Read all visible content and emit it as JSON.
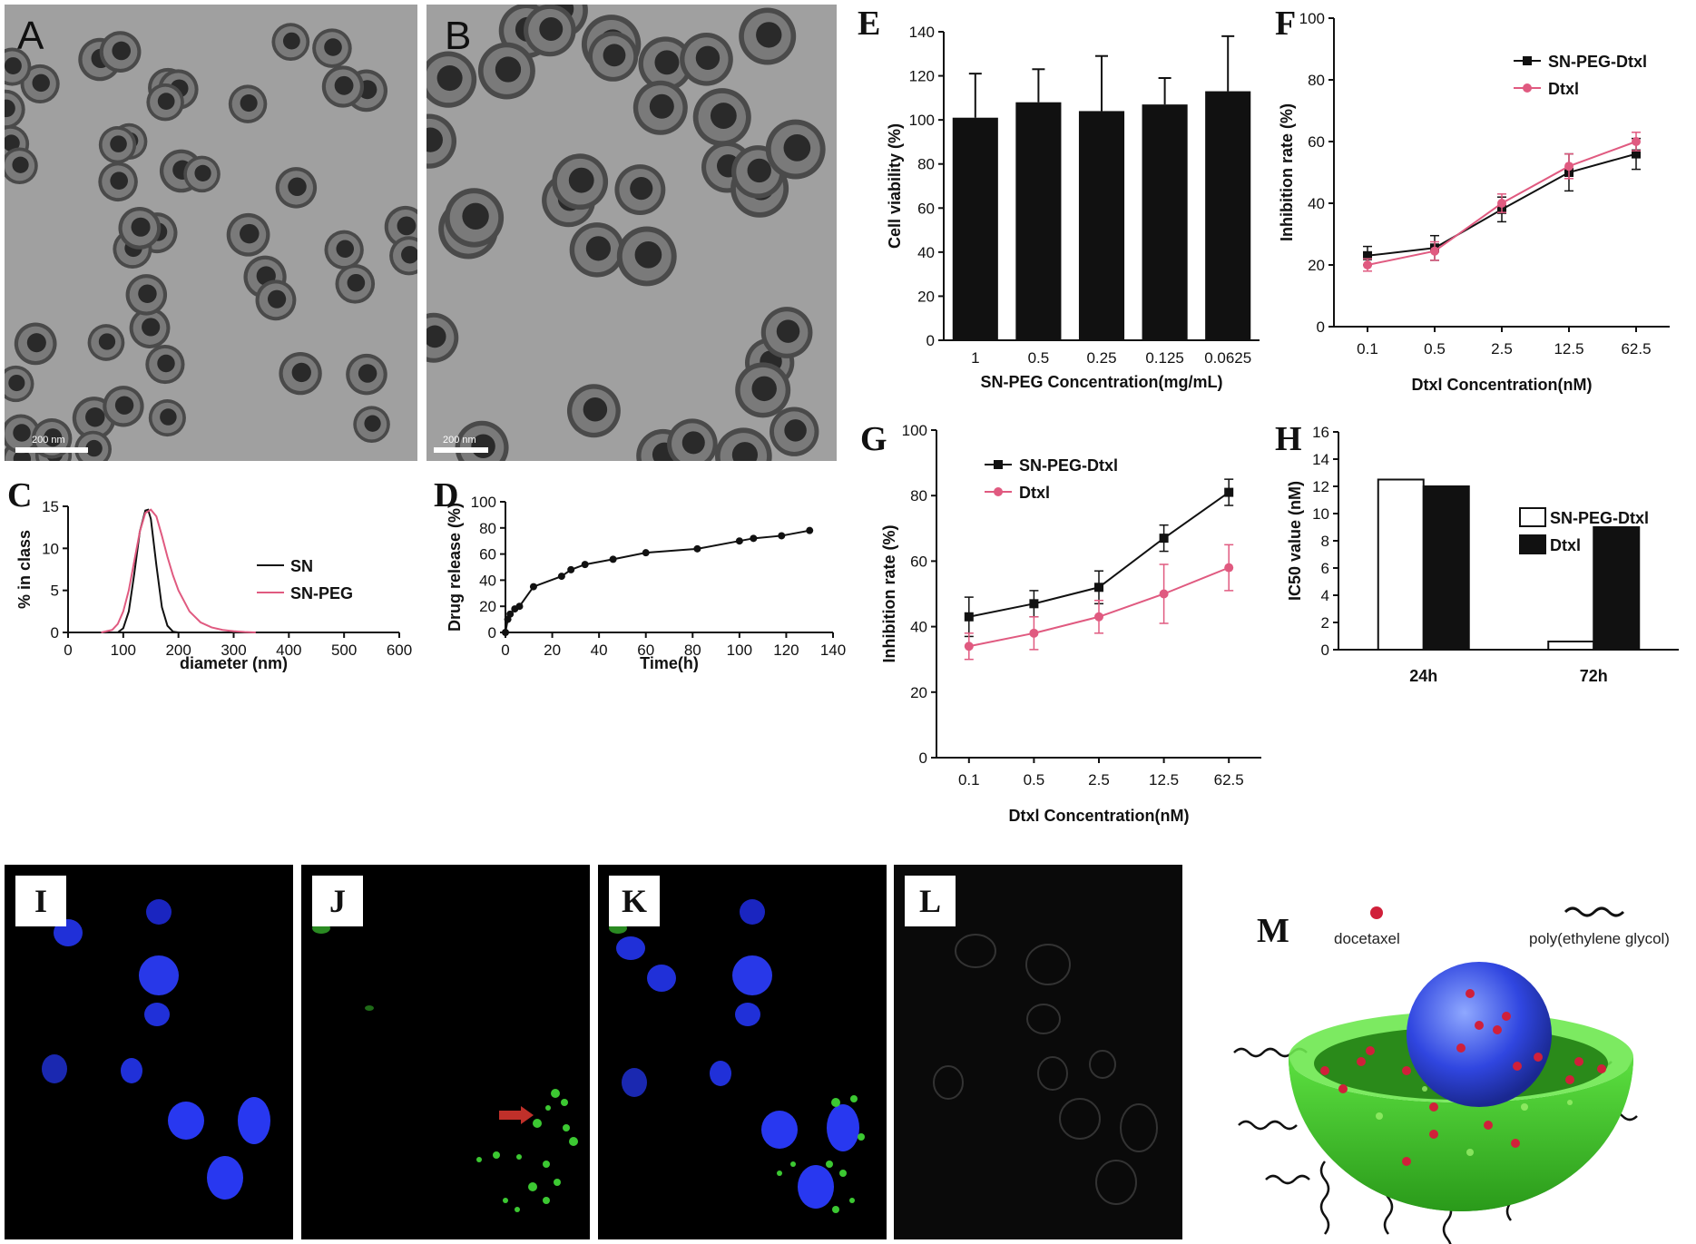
{
  "panels": {
    "A": {
      "label": "A",
      "scale": "200 nm"
    },
    "B": {
      "label": "B",
      "scale": "200 nm"
    },
    "I": {
      "label": "I"
    },
    "J": {
      "label": "J"
    },
    "K": {
      "label": "K"
    },
    "L": {
      "label": "L"
    },
    "M": {
      "label": "M",
      "legend_drug": "docetaxel",
      "legend_polymer": "poly(ethylene glycol)"
    }
  },
  "colors": {
    "black": "#111111",
    "pink": "#e05a80",
    "blue": "#2030e0",
    "green": "#3cc832"
  },
  "chart_data": [
    {
      "id": "C",
      "type": "line",
      "panel_label": "C",
      "xlabel": "diameter (nm)",
      "ylabel": "% in class",
      "xlim": [
        0,
        600
      ],
      "ylim": [
        0,
        15
      ],
      "xticks": [
        0,
        100,
        200,
        300,
        400,
        500,
        600
      ],
      "yticks": [
        0,
        5,
        10,
        15
      ],
      "legend_position": "right",
      "series": [
        {
          "name": "SN",
          "color": "#111111",
          "x": [
            90,
            100,
            110,
            120,
            130,
            140,
            145,
            150,
            160,
            170,
            180,
            190,
            200
          ],
          "y": [
            0,
            0.5,
            2.5,
            7,
            12,
            14.5,
            14.6,
            13.5,
            8,
            3,
            0.8,
            0.1,
            0
          ]
        },
        {
          "name": "SN-PEG",
          "color": "#e05a80",
          "x": [
            60,
            80,
            90,
            100,
            110,
            120,
            130,
            140,
            150,
            160,
            170,
            180,
            190,
            200,
            220,
            240,
            260,
            280,
            300,
            320,
            340
          ],
          "y": [
            0,
            0.3,
            1,
            2.5,
            5,
            8.5,
            12,
            14.2,
            14.6,
            13.8,
            11.5,
            9,
            6.8,
            5,
            2.5,
            1.2,
            0.6,
            0.3,
            0.15,
            0.05,
            0
          ]
        }
      ]
    },
    {
      "id": "D",
      "type": "line",
      "panel_label": "D",
      "xlabel": "Time(h)",
      "ylabel": "Drug release (%)",
      "xlim": [
        0,
        140
      ],
      "ylim": [
        0,
        100
      ],
      "xticks": [
        0,
        20,
        40,
        60,
        80,
        100,
        120,
        140
      ],
      "yticks": [
        0,
        20,
        40,
        60,
        80,
        100
      ],
      "tick_labels_x": [
        "0",
        "20",
        "40",
        "60",
        "80",
        "100",
        "120",
        "140"
      ],
      "series": [
        {
          "name": "",
          "color": "#111111",
          "x": [
            0,
            1,
            2,
            4,
            6,
            12,
            24,
            28,
            34,
            46,
            60,
            82,
            100,
            106,
            118,
            130
          ],
          "y": [
            0,
            10,
            14,
            18,
            20,
            35,
            43,
            48,
            52,
            56,
            61,
            64,
            70,
            72,
            74,
            78
          ]
        }
      ]
    },
    {
      "id": "E",
      "type": "bar",
      "panel_label": "E",
      "xlabel": "SN-PEG Concentration(mg/mL)",
      "ylabel": "Cell viability (%)",
      "ylim": [
        0,
        140
      ],
      "yticks": [
        0,
        20,
        40,
        60,
        80,
        100,
        120,
        140
      ],
      "categories": [
        "1",
        "0.5",
        "0.25",
        "0.125",
        "0.0625"
      ],
      "values": [
        101,
        108,
        104,
        107,
        113
      ],
      "errors": [
        20,
        15,
        25,
        12,
        25
      ]
    },
    {
      "id": "F",
      "type": "line",
      "panel_label": "F",
      "xlabel": "Dtxl Concentration(nM)",
      "ylabel": "Inhibition rate (%)",
      "ylim": [
        0,
        100
      ],
      "yticks": [
        0,
        20,
        40,
        60,
        80,
        100
      ],
      "categories": [
        "0.1",
        "0.5",
        "2.5",
        "12.5",
        "62.5"
      ],
      "legend_position": "top-right",
      "series": [
        {
          "name": "SN-PEG-Dtxl",
          "color": "#111111",
          "marker": "square",
          "values": [
            23,
            25.5,
            38,
            50,
            56
          ],
          "errors": [
            3,
            4,
            4,
            6,
            5
          ]
        },
        {
          "name": "Dtxl",
          "color": "#e05a80",
          "marker": "circle",
          "values": [
            20,
            24.5,
            40,
            52,
            60
          ],
          "errors": [
            2,
            3,
            3,
            4,
            3
          ]
        }
      ]
    },
    {
      "id": "G",
      "type": "line",
      "panel_label": "G",
      "xlabel": "Dtxl Concentration(nM)",
      "ylabel": "Inhibition rate (%)",
      "ylim": [
        0,
        100
      ],
      "yticks": [
        0,
        20,
        40,
        60,
        80,
        100
      ],
      "categories": [
        "0.1",
        "0.5",
        "2.5",
        "12.5",
        "62.5"
      ],
      "legend_position": "top-left",
      "series": [
        {
          "name": "SN-PEG-Dtxl",
          "color": "#111111",
          "marker": "square",
          "values": [
            43,
            47,
            52,
            67,
            81
          ],
          "errors": [
            6,
            4,
            5,
            4,
            4
          ]
        },
        {
          "name": "Dtxl",
          "color": "#e05a80",
          "marker": "circle",
          "values": [
            34,
            38,
            43,
            50,
            58
          ],
          "errors": [
            4,
            5,
            5,
            9,
            7
          ]
        }
      ]
    },
    {
      "id": "H",
      "type": "bar",
      "panel_label": "H",
      "xlabel": "",
      "ylabel": "IC50 value (nM)",
      "ylim": [
        0,
        16
      ],
      "yticks": [
        0,
        2,
        4,
        6,
        8,
        10,
        12,
        14,
        16
      ],
      "categories": [
        "24h",
        "72h"
      ],
      "legend_position": "top-right",
      "series": [
        {
          "name": "SN-PEG-Dtxl",
          "fill": "#ffffff",
          "values": [
            12.5,
            0.6
          ]
        },
        {
          "name": "Dtxl",
          "fill": "#111111",
          "values": [
            12,
            9
          ]
        }
      ]
    }
  ]
}
